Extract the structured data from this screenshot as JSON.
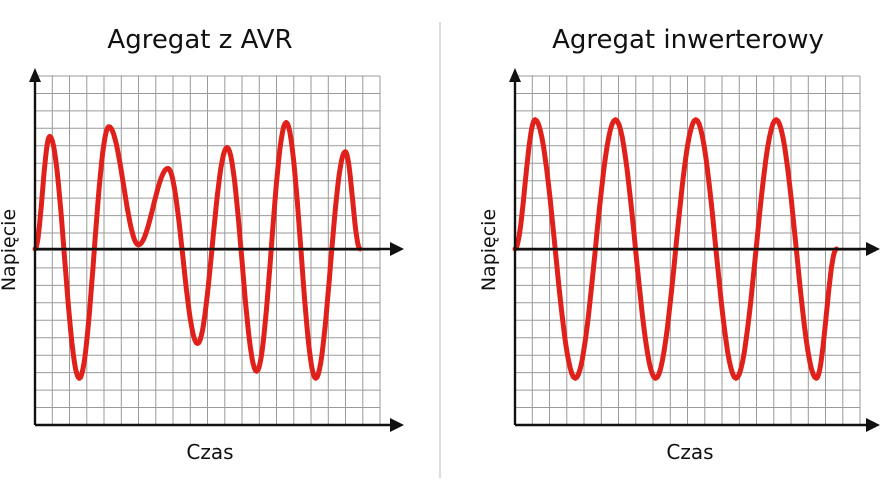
{
  "colors": {
    "wave": "#e0201b",
    "axis": "#111111",
    "grid": "#9a9a9a"
  },
  "panels": [
    {
      "title": "Agregat z AVR",
      "xlabel": "Czas",
      "ylabel": "Napięcie",
      "wave": {
        "peaks": [
          0.81,
          -0.93,
          0.88,
          0.03,
          0.58,
          -0.68,
          0.73,
          -0.88,
          0.91,
          -0.93,
          0.7,
          0.0
        ]
      }
    },
    {
      "title": "Agregat inwerterowy",
      "xlabel": "Czas",
      "ylabel": "Napięcie",
      "wave": {
        "peaks": [
          0.93,
          -0.93,
          0.93,
          -0.93,
          0.93,
          -0.93,
          0.93,
          -0.93,
          0.0
        ]
      }
    }
  ]
}
